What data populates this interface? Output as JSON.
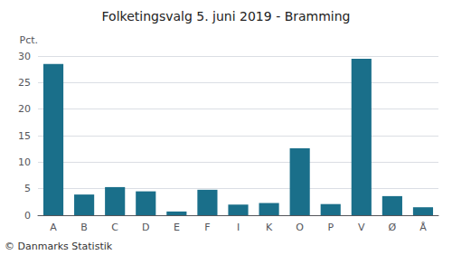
{
  "chart_data": {
    "type": "bar",
    "title": "Folketingsvalg 5. juni 2019 - Bramming",
    "categories": [
      "A",
      "B",
      "C",
      "D",
      "E",
      "F",
      "I",
      "K",
      "O",
      "P",
      "V",
      "Ø",
      "Å"
    ],
    "values": [
      28.5,
      3.9,
      5.3,
      4.5,
      0.7,
      4.8,
      2.0,
      2.3,
      12.6,
      2.1,
      29.5,
      3.6,
      1.5
    ],
    "color": "#1a6f8a",
    "ylabel": "Pct.",
    "ylim": [
      0,
      30
    ],
    "yticks": [
      0,
      5,
      10,
      15,
      20,
      25,
      30
    ],
    "grid": true,
    "annotations": [
      "© Danmarks Statistik"
    ]
  }
}
